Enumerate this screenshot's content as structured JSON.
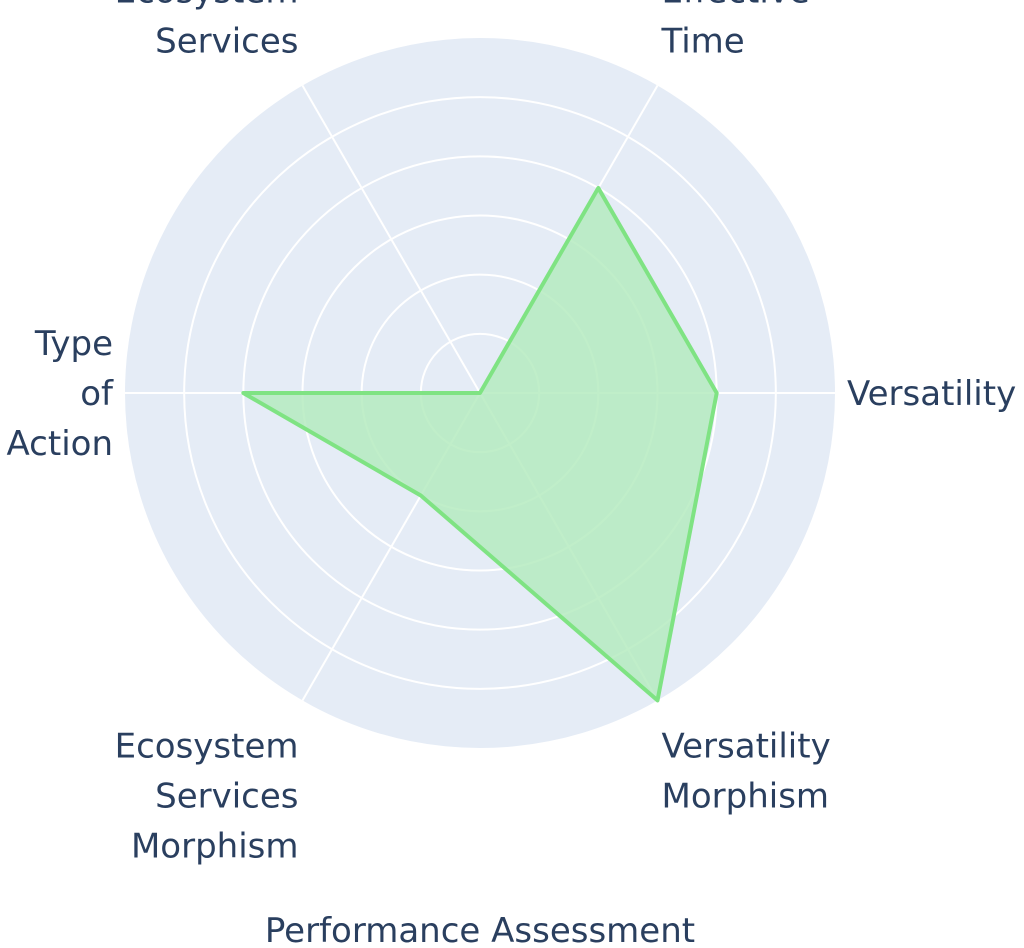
{
  "chart_data": {
    "type": "radar",
    "title": "Performance Assessment",
    "axes": [
      {
        "label_lines": [
          "Versatility"
        ]
      },
      {
        "label_lines": [
          "Effective",
          "Time"
        ]
      },
      {
        "label_lines": [
          "Ecosystem",
          "Services"
        ]
      },
      {
        "label_lines": [
          "Type",
          "of",
          "Action"
        ]
      },
      {
        "label_lines": [
          "Ecosystem",
          "Services",
          "Morphism"
        ]
      },
      {
        "label_lines": [
          "Versatility",
          "Morphism"
        ]
      }
    ],
    "series": [
      {
        "values": [
          4,
          4,
          0,
          4,
          2,
          6
        ]
      }
    ],
    "radial_range": [
      0,
      6
    ],
    "gridlines": [
      1,
      2,
      3,
      4,
      5,
      6
    ],
    "grid": true,
    "colors": {
      "background": "#e5ecf6",
      "grid": "#ffffff",
      "fill": "#b5ebbf",
      "line": "#7fe383",
      "text": "#2a3f5f"
    }
  }
}
